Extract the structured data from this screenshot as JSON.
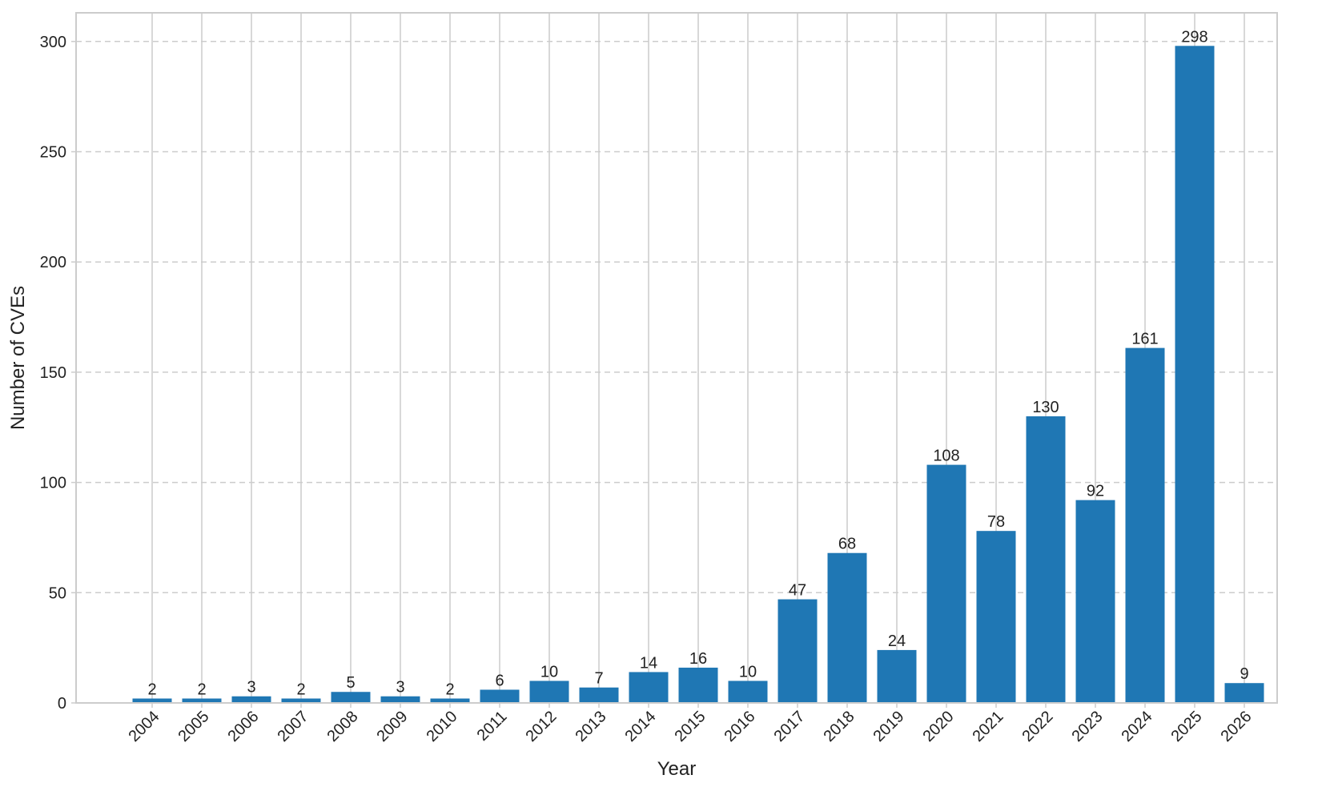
{
  "chart_data": {
    "type": "bar",
    "title": "",
    "xlabel": "Year",
    "ylabel": "Number of CVEs",
    "categories": [
      "2004",
      "2005",
      "2006",
      "2007",
      "2008",
      "2009",
      "2010",
      "2011",
      "2012",
      "2013",
      "2014",
      "2015",
      "2016",
      "2017",
      "2018",
      "2019",
      "2020",
      "2021",
      "2022",
      "2023",
      "2024",
      "2025",
      "2026"
    ],
    "values": [
      2,
      2,
      3,
      2,
      5,
      3,
      2,
      6,
      10,
      7,
      14,
      16,
      10,
      47,
      68,
      24,
      108,
      78,
      130,
      92,
      161,
      298,
      9
    ],
    "ylim": [
      0,
      313
    ],
    "yticks": [
      0,
      50,
      100,
      150,
      200,
      250,
      300
    ],
    "grid": {
      "x": true,
      "y": true,
      "y_style": "dashed"
    },
    "data_labels": true,
    "x_tick_rotation_deg": -45,
    "colors": {
      "bar": "#1f77b4",
      "grid": "#cccccc",
      "axes": "#cccccc",
      "text": "#222222"
    }
  }
}
